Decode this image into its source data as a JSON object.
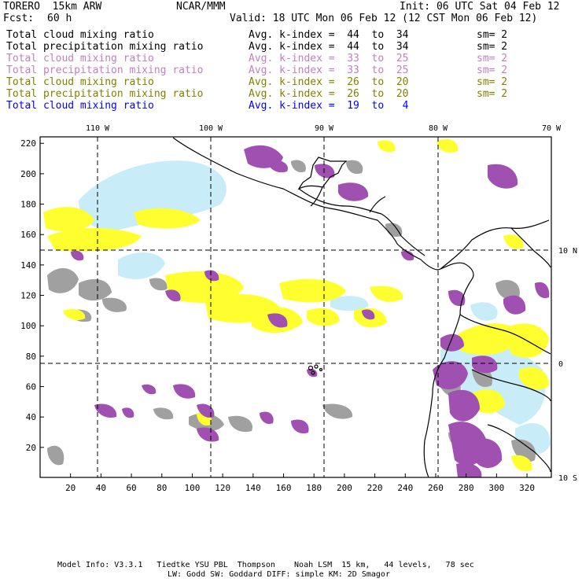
{
  "header": {
    "model": "TORERO  15km ARW",
    "center": "NCAR/MMM",
    "init": "Init: 06 UTC Sat 04 Feb 12",
    "fcst_label": "Fcst:",
    "fcst_value": "60 h",
    "valid": "Valid: 18 UTC Mon 06 Feb 12 (12 CST Mon 06 Feb 12)"
  },
  "legend": [
    {
      "field": "Total cloud mixing ratio",
      "range": "Avg. k-index =  44  to  34",
      "sm": "sm= 2",
      "color": "#000000"
    },
    {
      "field": "Total precipitation mixing ratio",
      "range": "Avg. k-index =  44  to  34",
      "sm": "sm= 2",
      "color": "#000000"
    },
    {
      "field": "Total cloud mixing ratio",
      "range": "Avg. k-index =  33  to  25",
      "sm": "sm= 2",
      "color": "#c080c0"
    },
    {
      "field": "Total precipitation mixing ratio",
      "range": "Avg. k-index =  33  to  25",
      "sm": "sm= 2",
      "color": "#c080c0"
    },
    {
      "field": "Total cloud mixing ratio",
      "range": "Avg. k-index =  26  to  20",
      "sm": "sm= 2",
      "color": "#808000"
    },
    {
      "field": "Total precipitation mixing ratio",
      "range": "Avg. k-index =  26  to  20",
      "sm": "sm= 2",
      "color": "#808000"
    },
    {
      "field": "Total cloud mixing ratio",
      "range": "Avg. k-index =  19  to   4",
      "sm": "",
      "color": "#0000ff"
    }
  ],
  "map": {
    "lon_labels": [
      "110 W",
      "100 W",
      "90 W",
      "80 W",
      "70 W"
    ],
    "lat_labels": [
      "10 N",
      "0",
      "10 S"
    ],
    "y_ticks": [
      "220",
      "200",
      "180",
      "160",
      "140",
      "120",
      "100",
      "80",
      "60",
      "40",
      "20"
    ],
    "x_ticks": [
      "20",
      "40",
      "60",
      "80",
      "100",
      "120",
      "140",
      "160",
      "180",
      "200",
      "220",
      "240",
      "260",
      "280",
      "300",
      "320"
    ],
    "colors": {
      "gray": "#a0a0a0",
      "purple": "#a050b0",
      "yellow": "#ffff30",
      "lightblue": "#c8ecf8"
    }
  },
  "footer": {
    "line1": "Model Info: V3.3.1   Tiedtke YSU PBL  Thompson    Noah LSM  15 km,   44 levels,   78 sec",
    "line2": "LW: Godd SW: Goddard DIFF: simple KM: 2D Smagor"
  }
}
